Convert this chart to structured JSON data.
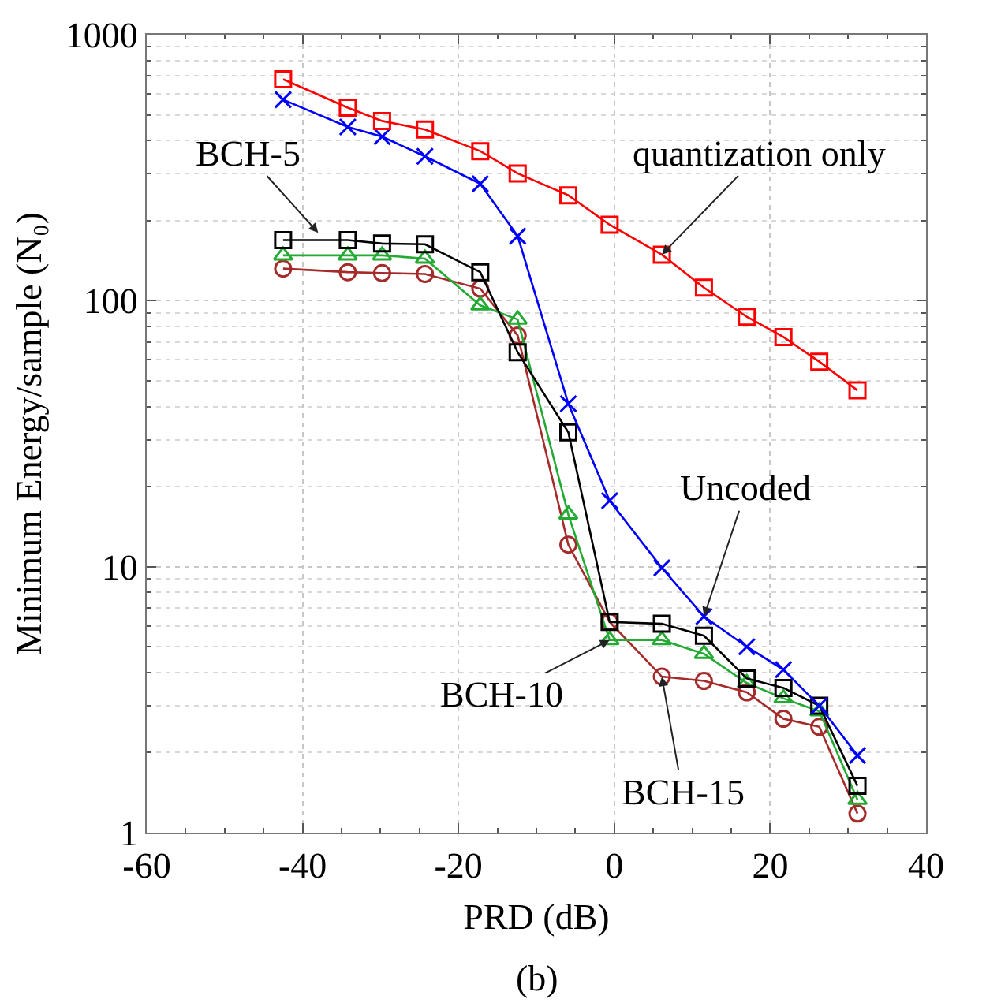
{
  "chart_data": {
    "type": "line",
    "xlabel": "PRD (dB)",
    "ylabel": "Minimum Energy/sample (N₀)",
    "log": "y",
    "grid": true,
    "line_style": "solid",
    "xlim": [
      -60,
      40
    ],
    "xticks": [
      -60,
      -40,
      -20,
      0,
      20,
      40
    ],
    "ylim": [
      1,
      1000
    ],
    "yticks": [
      1,
      10,
      100,
      1000
    ],
    "x": [
      -42.5,
      -34.2,
      -29.8,
      -24.3,
      -17.2,
      -12.4,
      -5.9,
      -0.6,
      6.1,
      11.5,
      17,
      21.7,
      26.3,
      31.2
    ],
    "series": [
      {
        "color": "#ff0000",
        "marker": "square",
        "values": [
          680,
          532,
          474,
          440,
          365,
          301,
          249,
          193,
          149,
          112,
          87,
          73,
          59,
          46
        ]
      },
      {
        "color": "#0000ff",
        "marker": "cross",
        "values": [
          570,
          450,
          414,
          349,
          275,
          175,
          41,
          17.7,
          9.9,
          6.5,
          5,
          4.1,
          3,
          1.95
        ]
      },
      {
        "color": "#000000",
        "marker": "square",
        "values": [
          169,
          169,
          164,
          163,
          128,
          64,
          32,
          6.2,
          6.1,
          5.5,
          3.8,
          3.5,
          3,
          1.5
        ]
      },
      {
        "color": "#22aa33",
        "marker": "triangle",
        "values": [
          148,
          148,
          148,
          144,
          96,
          85,
          15.7,
          5.3,
          5.3,
          4.7,
          3.65,
          3.2,
          2.86,
          1.33
        ]
      },
      {
        "color": "#a52a2a",
        "marker": "circle",
        "values": [
          132,
          128,
          127,
          126,
          111,
          74,
          12.1,
          6.2,
          3.86,
          3.72,
          3.37,
          2.68,
          2.5,
          1.18
        ]
      }
    ],
    "annotations": [
      {
        "text": "BCH-5",
        "x": -38,
        "y": 180
      },
      {
        "text": "quantization only",
        "x": 6.1,
        "y": 149
      },
      {
        "text": "Uncoded",
        "x": 11.5,
        "y": 6.5
      },
      {
        "text": "BCH-10",
        "x": -0.6,
        "y": 5.3
      },
      {
        "text": "BCH-15",
        "x": 6.1,
        "y": 3.86
      },
      "(b)"
    ]
  }
}
